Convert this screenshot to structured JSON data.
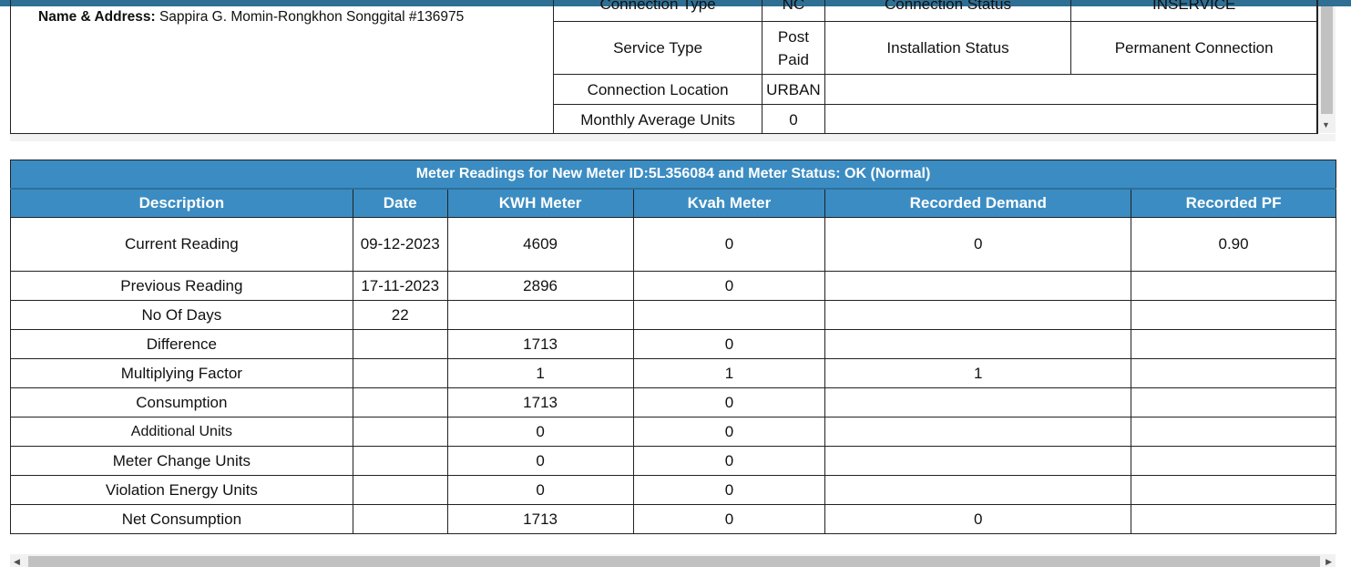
{
  "consumer": {
    "name_label": "Name & Address:",
    "name_value": "Sappira G. Momin-Rongkhon Songgital #136975"
  },
  "connection_info": {
    "rows": [
      [
        "Connection Type",
        "NC",
        "Connection Status",
        "INSERVICE"
      ],
      [
        "Service Type",
        "Post Paid",
        "Installation Status",
        "Permanent Connection"
      ],
      [
        "Connection Location",
        "URBAN"
      ],
      [
        "Monthly Average Units",
        "0"
      ]
    ]
  },
  "meter_readings": {
    "caption": "Meter Readings for New Meter ID:5L356084 and Meter Status: OK (Normal)",
    "headers": [
      "Description",
      "Date",
      "KWH Meter",
      "Kvah Meter",
      "Recorded Demand",
      "Recorded PF"
    ],
    "rows": [
      [
        "Current Reading",
        "09-12-2023",
        "4609",
        "0",
        "0",
        "0.90"
      ],
      [
        "Previous Reading",
        "17-11-2023",
        "2896",
        "0",
        "",
        ""
      ],
      [
        "No Of Days",
        "22",
        "",
        "",
        "",
        ""
      ],
      [
        "Difference",
        "",
        "1713",
        "0",
        "",
        ""
      ],
      [
        "Multiplying Factor",
        "",
        "1",
        "1",
        "1",
        ""
      ],
      [
        "Consumption",
        "",
        "1713",
        "0",
        "",
        ""
      ],
      [
        "Additional Units",
        "",
        "0",
        "0",
        "",
        ""
      ],
      [
        "Meter Change Units",
        "",
        "0",
        "0",
        "",
        ""
      ],
      [
        "Violation Energy Units",
        "",
        "0",
        "0",
        "",
        ""
      ],
      [
        "Net Consumption",
        "",
        "1713",
        "0",
        "0",
        ""
      ]
    ]
  },
  "icons": {
    "scroll_down": "▼",
    "scroll_left": "◀",
    "scroll_right": "▶"
  }
}
